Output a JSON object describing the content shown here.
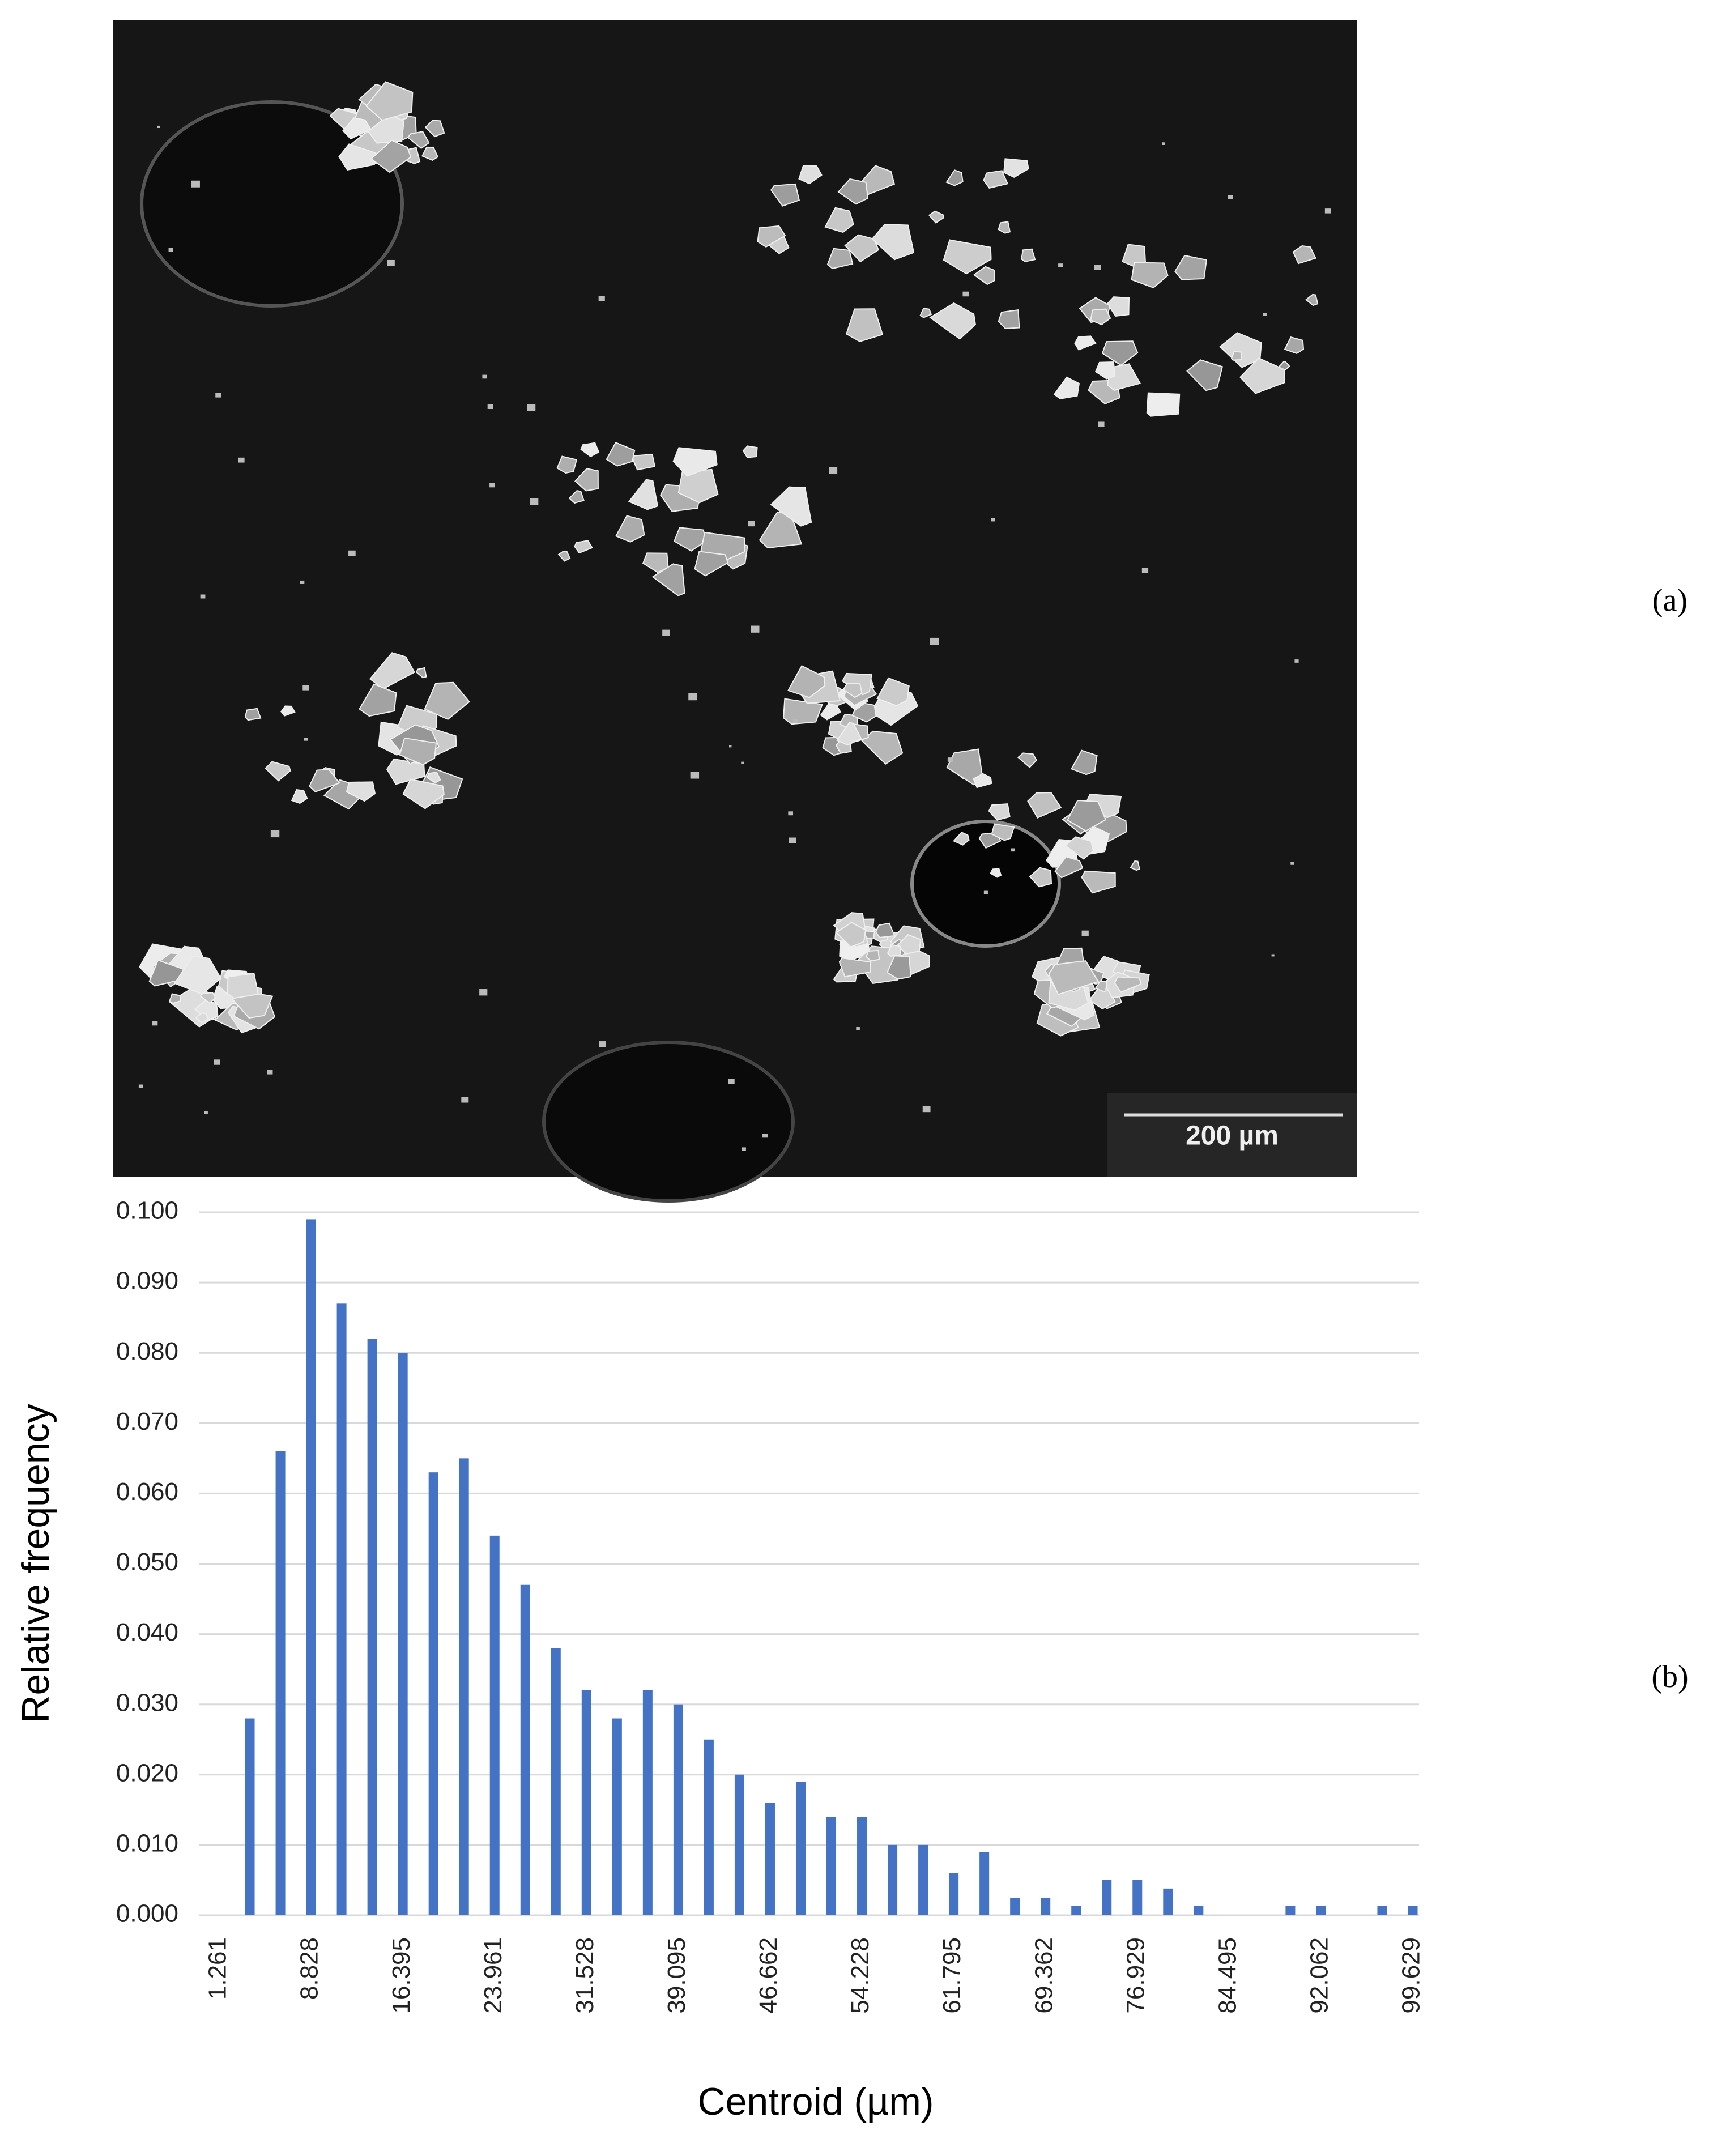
{
  "panel_a": {
    "label": "(a)",
    "scale_bar": "200 µm"
  },
  "panel_b": {
    "label": "(b)"
  },
  "chart_data": {
    "type": "bar",
    "x_label": "Centroid (µm)",
    "y_label": "Relative frequency",
    "categories": [
      "1.261",
      null,
      null,
      "8.828",
      null,
      null,
      "16.395",
      null,
      null,
      "23.961",
      null,
      null,
      "31.528",
      null,
      null,
      "39.095",
      null,
      null,
      "46.662",
      null,
      null,
      "54.228",
      null,
      null,
      "61.795",
      null,
      null,
      "69.362",
      null,
      null,
      "76.929",
      null,
      null,
      "84.495",
      null,
      null,
      "92.062",
      null,
      null,
      "99.629"
    ],
    "values": [
      0,
      0.028,
      0.066,
      0.099,
      0.087,
      0.082,
      0.08,
      0.063,
      0.065,
      0.054,
      0.047,
      0.038,
      0.032,
      0.028,
      0.032,
      0.03,
      0.025,
      0.02,
      0.016,
      0.019,
      0.014,
      0.014,
      0.01,
      0.01,
      0.006,
      0.009,
      0.0025,
      0.0025,
      0.0013,
      0.005,
      0.005,
      0.0038,
      0.0013,
      0,
      0,
      0.0013,
      0.0013,
      0,
      0.0013,
      0.0013
    ],
    "color": "#4472c4",
    "ylim": [
      0,
      0.1
    ],
    "yticks": [
      {
        "value": 0,
        "label": "0.000"
      },
      {
        "value": 0.01,
        "label": "0.010"
      },
      {
        "value": 0.02,
        "label": "0.020"
      },
      {
        "value": 0.03,
        "label": "0.030"
      },
      {
        "value": 0.04,
        "label": "0.040"
      },
      {
        "value": 0.05,
        "label": "0.050"
      },
      {
        "value": 0.06,
        "label": "0.060"
      },
      {
        "value": 0.07,
        "label": "0.070"
      },
      {
        "value": 0.08,
        "label": "0.080"
      },
      {
        "value": 0.09,
        "label": "0.090"
      },
      {
        "value": 0.1,
        "label": "0.100"
      }
    ],
    "grid": true
  }
}
